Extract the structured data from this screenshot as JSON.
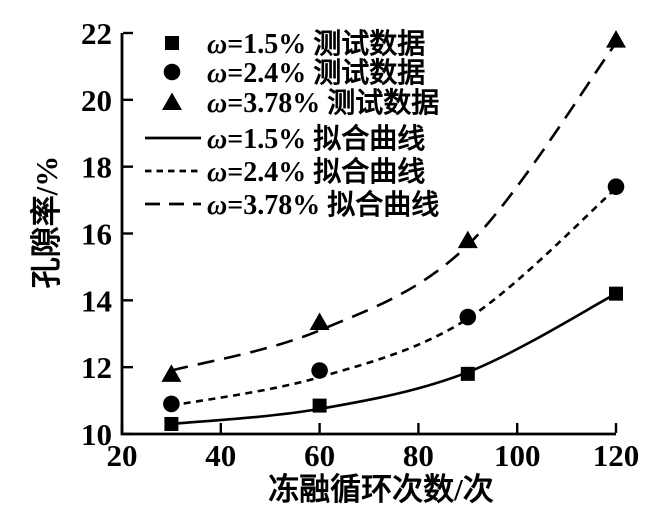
{
  "figure": {
    "background": "#ffffff",
    "ink": "#000000"
  },
  "chart_data": {
    "type": "scatter",
    "title": "",
    "xlabel": "冻融循环次数/次",
    "ylabel": "孔隙率/%",
    "xlim": [
      20,
      120
    ],
    "ylim": [
      10,
      22
    ],
    "xticks": [
      20,
      40,
      60,
      80,
      100,
      120
    ],
    "yticks": [
      10,
      12,
      14,
      16,
      18,
      20,
      22
    ],
    "grid": false,
    "legend_position": "upper-left-inside",
    "x": [
      30,
      60,
      90,
      120
    ],
    "series": [
      {
        "name": "ω=1.5% 测试数据",
        "kind": "scatter",
        "marker": "square",
        "values": [
          10.3,
          10.85,
          11.8,
          14.2
        ]
      },
      {
        "name": "ω=2.4% 测试数据",
        "kind": "scatter",
        "marker": "circle",
        "values": [
          10.9,
          11.9,
          13.5,
          17.4
        ]
      },
      {
        "name": "ω=3.78% 测试数据",
        "kind": "scatter",
        "marker": "triangle",
        "values": [
          11.8,
          13.35,
          15.8,
          21.8
        ]
      },
      {
        "name": "ω=1.5% 拟合曲线",
        "kind": "line",
        "style": "solid",
        "values": [
          10.3,
          10.75,
          11.85,
          14.2
        ]
      },
      {
        "name": "ω=2.4% 拟合曲线",
        "kind": "line",
        "style": "dotted",
        "values": [
          10.85,
          11.7,
          13.45,
          17.35
        ]
      },
      {
        "name": "ω=3.78% 拟合曲线",
        "kind": "line",
        "style": "dashed",
        "values": [
          11.9,
          13.1,
          15.65,
          21.7
        ]
      }
    ]
  }
}
